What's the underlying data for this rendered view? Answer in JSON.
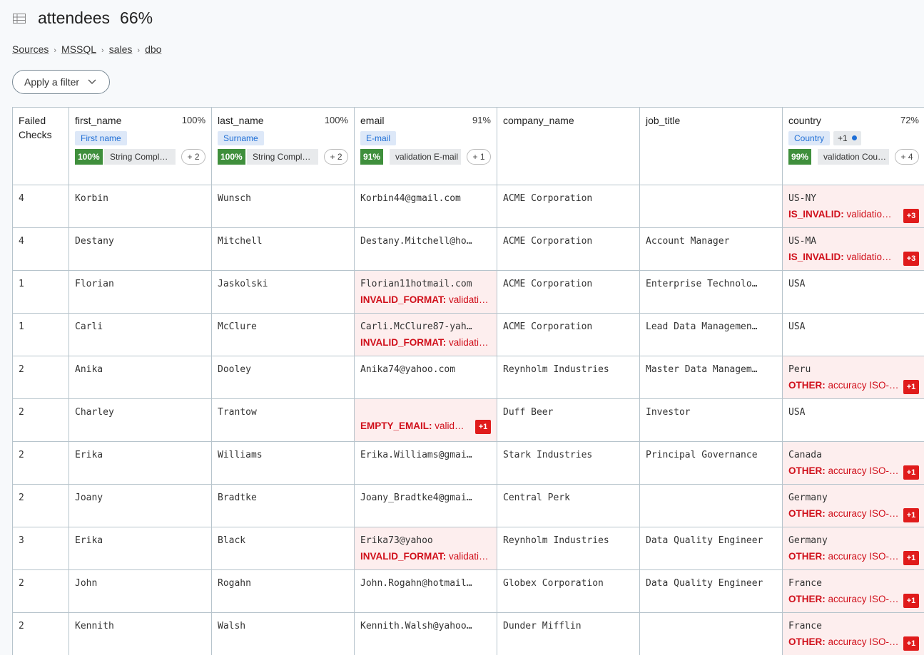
{
  "header": {
    "title": "attendees",
    "score": "66%"
  },
  "breadcrumbs": [
    "Sources",
    "MSSQL",
    "sales",
    "dbo"
  ],
  "filter_button": "Apply a filter",
  "table": {
    "columns": [
      {
        "name": "Failed Checks"
      },
      {
        "name": "first_name",
        "score": "100%",
        "tag": "First name",
        "rule_score": "100%",
        "rule_name": "String Compl…",
        "more": "+ 2"
      },
      {
        "name": "last_name",
        "score": "100%",
        "tag": "Surname",
        "rule_score": "100%",
        "rule_name": "String Compl…",
        "more": "+ 2"
      },
      {
        "name": "email",
        "score": "91%",
        "tag": "E-mail",
        "rule_score": "91%",
        "rule_name": "validation E-mail",
        "more": "+ 1"
      },
      {
        "name": "company_name"
      },
      {
        "name": "job_title"
      },
      {
        "name": "country",
        "score": "72%",
        "tag": "Country",
        "tag_extra": "+1",
        "rule_score": "99%",
        "rule_name": "validation Cou…",
        "more": "+ 4"
      }
    ],
    "rows": [
      [
        4,
        "Korbin",
        "Wunsch",
        "Korbin44@gmail.com",
        "ACME Corporation",
        null,
        {
          "value": "US-NY",
          "error_code": "IS_INVALID:",
          "error_text": "validatio…",
          "more": "+3"
        }
      ],
      [
        4,
        "Destany",
        "Mitchell",
        "Destany.Mitchell@ho…",
        "ACME Corporation",
        "Account Manager",
        {
          "value": "US-MA",
          "error_code": "IS_INVALID:",
          "error_text": "validatio…",
          "more": "+3"
        }
      ],
      [
        1,
        "Florian",
        "Jaskolski",
        {
          "value": "Florian11hotmail.com",
          "error_code": "INVALID_FORMAT:",
          "error_text": "validati…"
        },
        "ACME Corporation",
        "Enterprise Technolo…",
        "USA"
      ],
      [
        1,
        "Carli",
        "McClure",
        {
          "value": "Carli.McClure87-yah…",
          "error_code": "INVALID_FORMAT:",
          "error_text": "validati…"
        },
        "ACME Corporation",
        "Lead Data Managemen…",
        "USA"
      ],
      [
        2,
        "Anika",
        "Dooley",
        "Anika74@yahoo.com",
        "Reynholm Industries",
        "Master Data Managem…",
        {
          "value": "Peru",
          "error_code": "OTHER:",
          "error_text": "accuracy ISO-…",
          "more": "+1"
        }
      ],
      [
        2,
        "Charley",
        "Trantow",
        {
          "error_code": "EMPTY_EMAIL:",
          "error_text": "valid…",
          "more": "+1"
        },
        "Duff Beer",
        "Investor",
        "USA"
      ],
      [
        2,
        "Erika",
        "Williams",
        "Erika.Williams@gmai…",
        "Stark Industries",
        "Principal Governance",
        {
          "value": "Canada",
          "error_code": "OTHER:",
          "error_text": "accuracy ISO-…",
          "more": "+1"
        }
      ],
      [
        2,
        "Joany",
        "Bradtke",
        "Joany_Bradtke4@gmai…",
        "Central Perk",
        null,
        {
          "value": "Germany",
          "error_code": "OTHER:",
          "error_text": "accuracy ISO-…",
          "more": "+1"
        }
      ],
      [
        3,
        "Erika",
        "Black",
        {
          "value": "Erika73@yahoo",
          "error_code": "INVALID_FORMAT:",
          "error_text": "validati…"
        },
        "Reynholm Industries",
        "Data Quality Engineer",
        {
          "value": "Germany",
          "error_code": "OTHER:",
          "error_text": "accuracy ISO-…",
          "more": "+1"
        }
      ],
      [
        2,
        "John",
        "Rogahn",
        "John.Rogahn@hotmail…",
        "Globex Corporation",
        "Data Quality Engineer",
        {
          "value": "France",
          "error_code": "OTHER:",
          "error_text": "accuracy ISO-…",
          "more": "+1"
        }
      ],
      [
        2,
        "Kennith",
        "Walsh",
        "Kennith.Walsh@yahoo…",
        "Dunder Mifflin",
        null,
        {
          "value": "France",
          "error_code": "OTHER:",
          "error_text": "accuracy ISO-…",
          "more": "+1"
        }
      ]
    ]
  }
}
